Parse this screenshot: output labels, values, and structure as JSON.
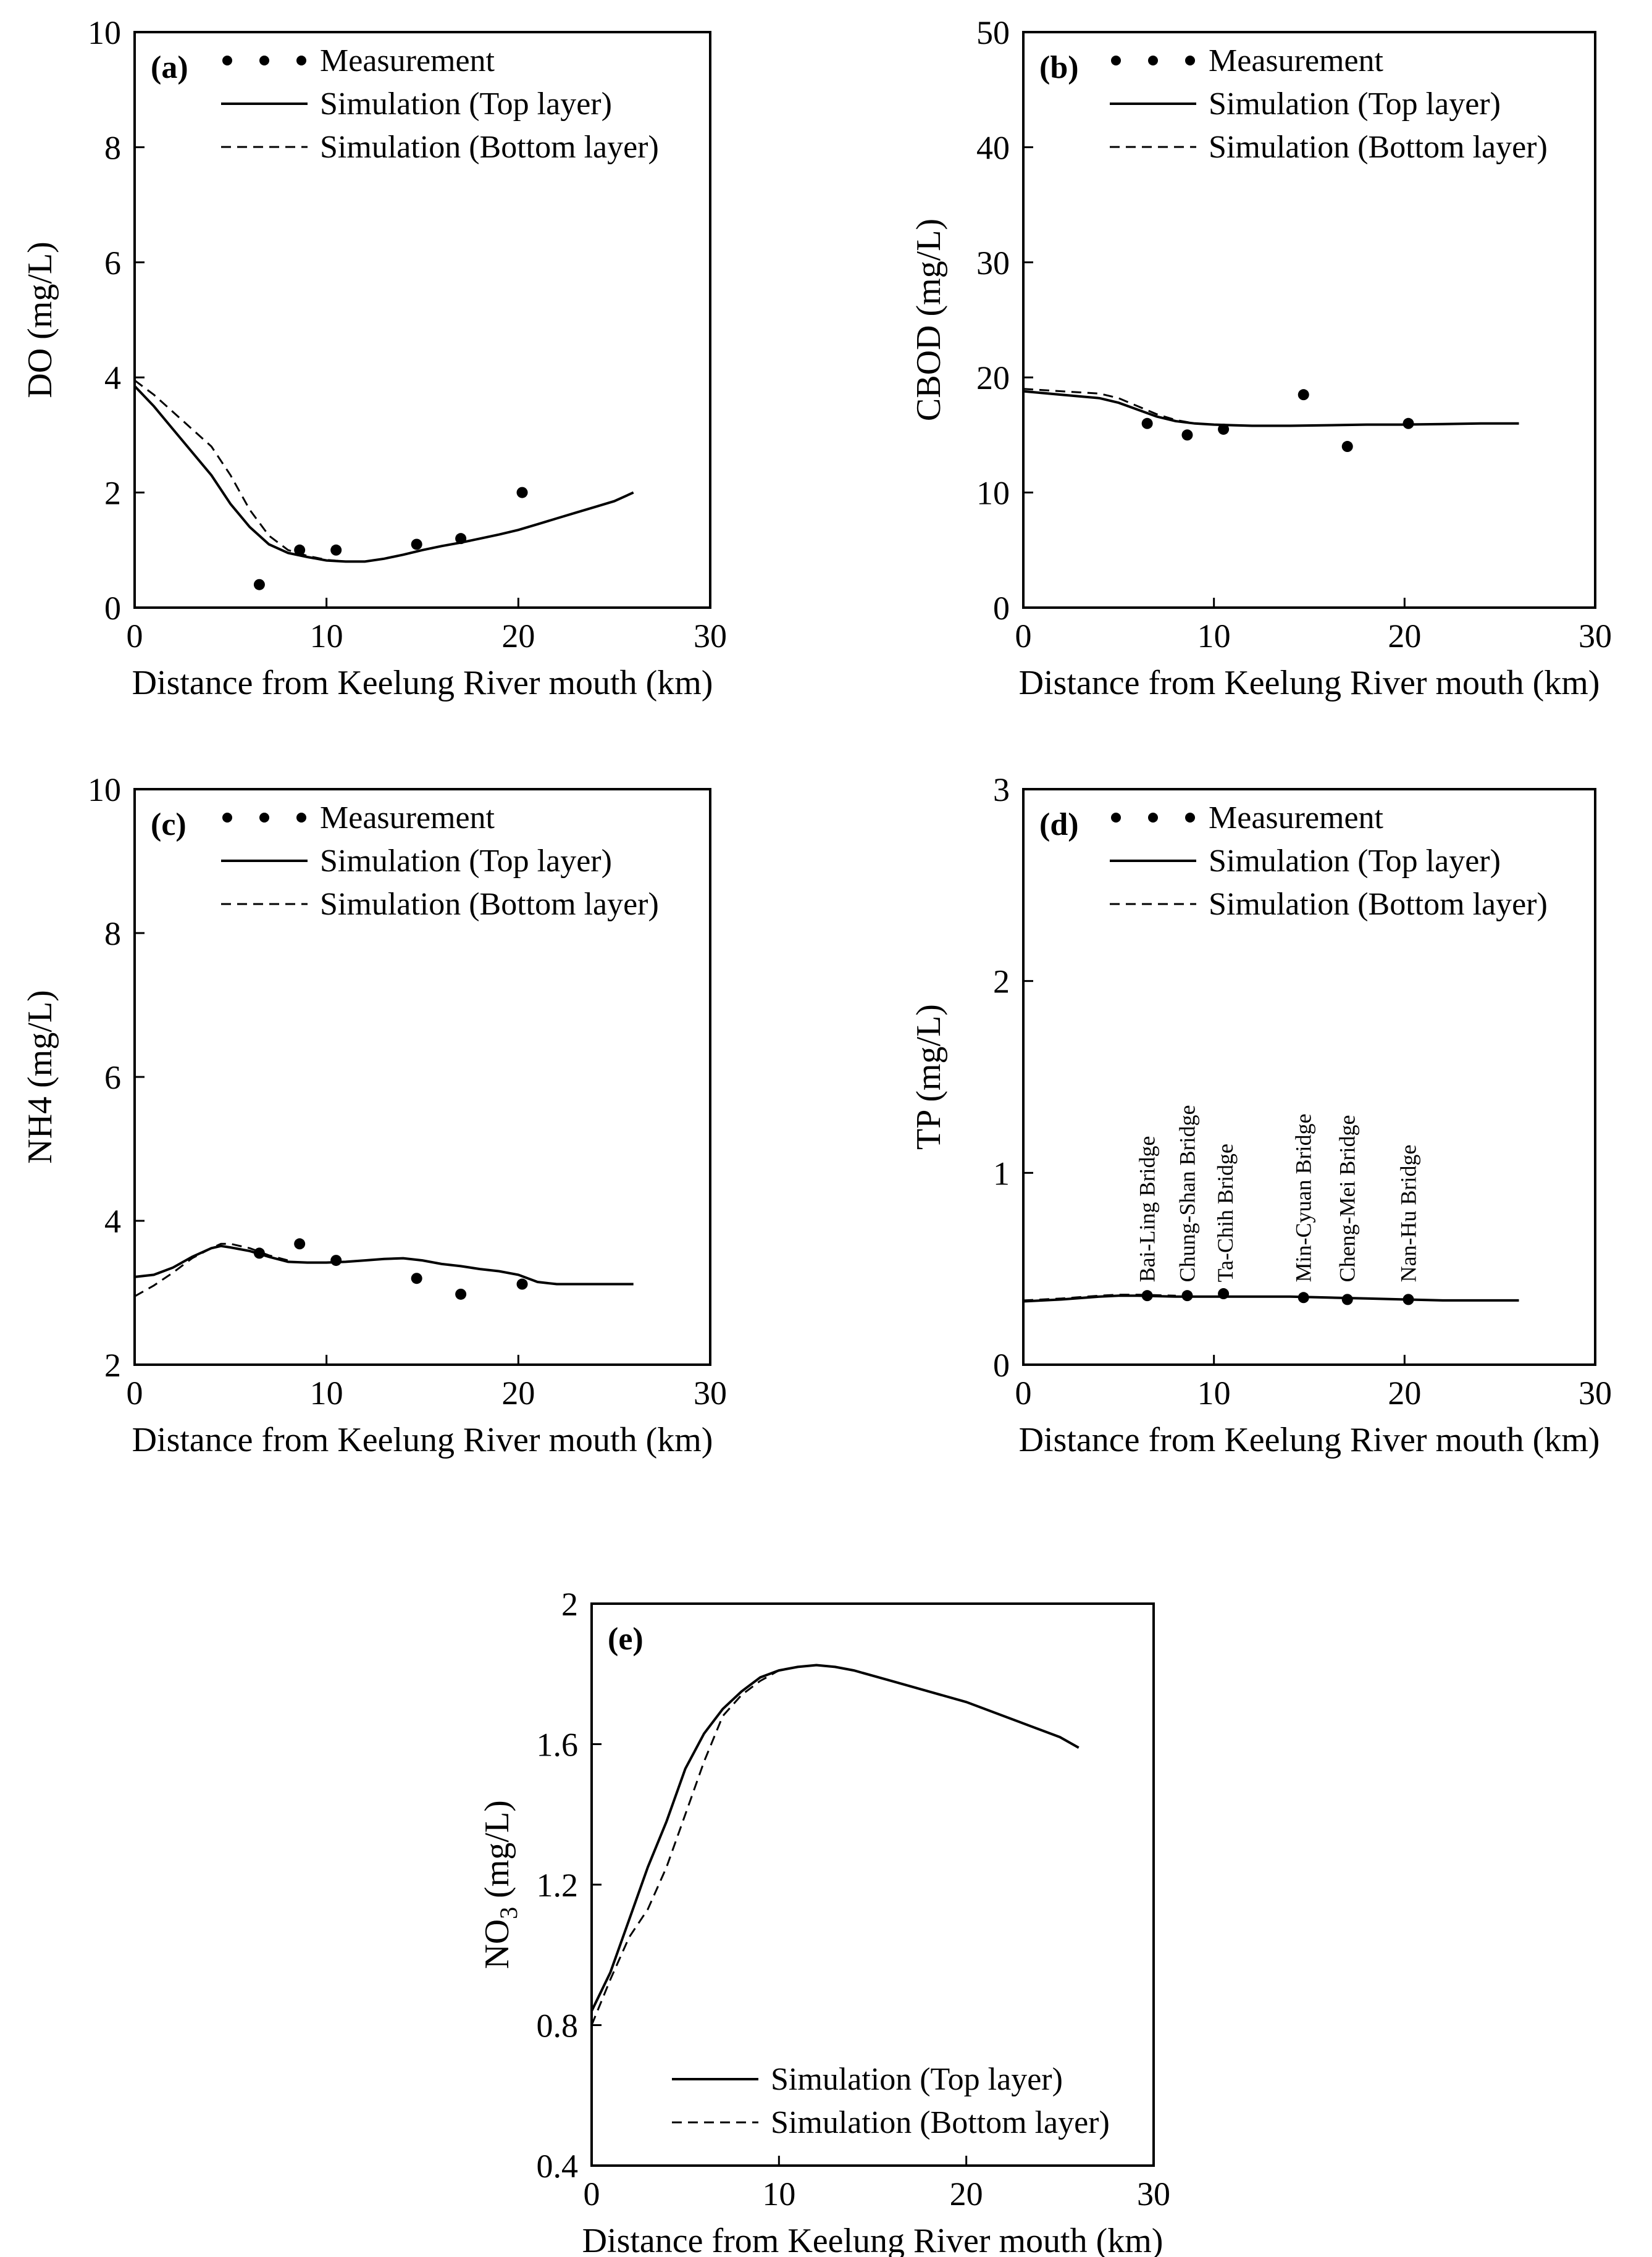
{
  "chart_data": [
    {
      "id": "a",
      "type": "line",
      "panel_tag": "(a)",
      "xlabel": "Distance from Keelung River mouth (km)",
      "ylabel": "DO (mg/L)",
      "ylabel_sub": "",
      "ylabel_rest": "",
      "xlim": [
        0,
        30
      ],
      "ylim": [
        0,
        10
      ],
      "xticks": [
        0,
        10,
        20,
        30
      ],
      "yticks": [
        0,
        2,
        4,
        6,
        8,
        10
      ],
      "legend_position": "top-left",
      "legend": [
        "Measurement",
        "Simulation (Top layer)",
        "Simulation (Bottom layer)"
      ],
      "series": [
        {
          "name": "Measurement",
          "kind": "points",
          "x": [
            6.5,
            8.6,
            10.5,
            14.7,
            17.0,
            20.2
          ],
          "y": [
            0.4,
            1.0,
            1.0,
            1.1,
            1.2,
            2.0
          ]
        },
        {
          "name": "Simulation (Top layer)",
          "kind": "solid",
          "x": [
            0,
            1,
            2,
            3,
            4,
            5,
            6,
            7,
            8,
            9,
            10,
            11,
            12,
            13,
            14,
            15,
            16,
            17,
            18,
            19,
            20,
            21,
            22,
            23,
            24,
            25,
            26
          ],
          "y": [
            3.85,
            3.5,
            3.1,
            2.7,
            2.3,
            1.8,
            1.4,
            1.1,
            0.95,
            0.88,
            0.82,
            0.8,
            0.8,
            0.85,
            0.92,
            1.0,
            1.07,
            1.13,
            1.2,
            1.27,
            1.35,
            1.45,
            1.55,
            1.65,
            1.75,
            1.85,
            2.0
          ]
        },
        {
          "name": "Simulation (Bottom layer)",
          "kind": "dashed",
          "x": [
            0,
            1,
            2,
            3,
            4,
            5,
            6,
            7,
            8,
            9,
            10,
            11,
            12,
            13,
            14,
            15,
            16,
            17,
            18,
            19,
            20
          ],
          "y": [
            3.95,
            3.7,
            3.4,
            3.1,
            2.8,
            2.3,
            1.7,
            1.25,
            1.0,
            0.9,
            0.83,
            0.8,
            0.8,
            0.85,
            0.92,
            1.0,
            1.07,
            1.13,
            1.2,
            1.27,
            1.35
          ]
        }
      ],
      "annotations": []
    },
    {
      "id": "b",
      "type": "line",
      "panel_tag": "(b)",
      "xlabel": "Distance from Keelung River mouth (km)",
      "ylabel": "CBOD (mg/L)",
      "ylabel_sub": "",
      "ylabel_rest": "",
      "xlim": [
        0,
        30
      ],
      "ylim": [
        0,
        50
      ],
      "xticks": [
        0,
        10,
        20,
        30
      ],
      "yticks": [
        0,
        10,
        20,
        30,
        40,
        50
      ],
      "legend_position": "top-left",
      "legend": [
        "Measurement",
        "Simulation (Top layer)",
        "Simulation (Bottom layer)"
      ],
      "series": [
        {
          "name": "Measurement",
          "kind": "points",
          "x": [
            6.5,
            8.6,
            10.5,
            14.7,
            17.0,
            20.2
          ],
          "y": [
            16.0,
            15.0,
            15.5,
            18.5,
            14.0,
            16.0
          ]
        },
        {
          "name": "Simulation (Top layer)",
          "kind": "solid",
          "x": [
            0,
            2,
            4,
            5,
            6,
            7,
            8,
            9,
            10,
            11,
            12,
            14,
            16,
            18,
            20,
            22,
            24,
            26
          ],
          "y": [
            18.8,
            18.5,
            18.2,
            17.8,
            17.2,
            16.6,
            16.2,
            16.0,
            15.9,
            15.85,
            15.8,
            15.8,
            15.85,
            15.9,
            15.9,
            15.95,
            16.0,
            16.0
          ]
        },
        {
          "name": "Simulation (Bottom layer)",
          "kind": "dashed",
          "x": [
            0,
            2,
            4,
            5,
            6,
            7,
            8,
            9,
            10,
            11,
            12
          ],
          "y": [
            19.0,
            18.8,
            18.6,
            18.2,
            17.5,
            16.8,
            16.3,
            16.0,
            15.9,
            15.85,
            15.8
          ]
        }
      ],
      "annotations": []
    },
    {
      "id": "c",
      "type": "line",
      "panel_tag": "(c)",
      "xlabel": "Distance from Keelung River mouth (km)",
      "ylabel": "NH4 (mg/L)",
      "ylabel_sub": "",
      "ylabel_rest": "",
      "xlim": [
        0,
        30
      ],
      "ylim": [
        2,
        10
      ],
      "xticks": [
        0,
        10,
        20,
        30
      ],
      "yticks": [
        2,
        4,
        6,
        8,
        10
      ],
      "legend_position": "top-left",
      "legend": [
        "Measurement",
        "Simulation (Top layer)",
        "Simulation (Bottom layer)"
      ],
      "series": [
        {
          "name": "Measurement",
          "kind": "points",
          "x": [
            6.5,
            8.6,
            10.5,
            14.7,
            17.0,
            20.2
          ],
          "y": [
            3.55,
            3.68,
            3.45,
            3.2,
            2.98,
            3.12
          ]
        },
        {
          "name": "Simulation (Top layer)",
          "kind": "solid",
          "x": [
            0,
            1,
            2,
            3,
            4,
            4.5,
            5,
            6,
            7,
            8,
            9,
            10,
            11,
            12,
            13,
            14,
            15,
            16,
            17,
            18,
            19,
            20,
            21,
            22,
            24,
            26
          ],
          "y": [
            3.22,
            3.25,
            3.35,
            3.5,
            3.62,
            3.65,
            3.63,
            3.58,
            3.5,
            3.43,
            3.42,
            3.42,
            3.43,
            3.45,
            3.47,
            3.48,
            3.45,
            3.4,
            3.37,
            3.33,
            3.3,
            3.25,
            3.15,
            3.12,
            3.12,
            3.12
          ]
        },
        {
          "name": "Simulation (Bottom layer)",
          "kind": "dashed",
          "x": [
            0,
            1,
            2,
            3,
            4,
            4.5,
            5,
            6,
            7,
            8
          ],
          "y": [
            2.95,
            3.1,
            3.28,
            3.48,
            3.62,
            3.68,
            3.68,
            3.62,
            3.52,
            3.45
          ]
        }
      ],
      "annotations": []
    },
    {
      "id": "d",
      "type": "line",
      "panel_tag": "(d)",
      "xlabel": "Distance from Keelung River mouth (km)",
      "ylabel": "TP (mg/L)",
      "ylabel_sub": "",
      "ylabel_rest": "",
      "xlim": [
        0,
        30
      ],
      "ylim": [
        0,
        3
      ],
      "xticks": [
        0,
        10,
        20,
        30
      ],
      "yticks": [
        0,
        1,
        2,
        3
      ],
      "legend_position": "top-left",
      "legend": [
        "Measurement",
        "Simulation (Top layer)",
        "Simulation (Bottom layer)"
      ],
      "series": [
        {
          "name": "Measurement",
          "kind": "points",
          "x": [
            6.5,
            8.6,
            10.5,
            14.7,
            17.0,
            20.2
          ],
          "y": [
            0.36,
            0.36,
            0.37,
            0.35,
            0.34,
            0.34
          ]
        },
        {
          "name": "Simulation (Top layer)",
          "kind": "solid",
          "x": [
            0,
            2,
            4,
            5,
            6,
            8,
            10,
            12,
            14,
            16,
            18,
            20,
            22,
            24,
            26
          ],
          "y": [
            0.33,
            0.34,
            0.355,
            0.36,
            0.36,
            0.355,
            0.355,
            0.355,
            0.355,
            0.35,
            0.345,
            0.34,
            0.335,
            0.335,
            0.335
          ]
        },
        {
          "name": "Simulation (Bottom layer)",
          "kind": "dashed",
          "x": [
            0,
            2,
            4,
            5,
            6,
            8
          ],
          "y": [
            0.335,
            0.345,
            0.36,
            0.365,
            0.365,
            0.36
          ]
        }
      ],
      "annotations": [
        {
          "text": "Bai-Ling Bridge",
          "x": 6.5,
          "y": 0.43
        },
        {
          "text": "Chung-Shan Bridge",
          "x": 8.6,
          "y": 0.43
        },
        {
          "text": "Ta-Chih Bridge",
          "x": 10.6,
          "y": 0.43
        },
        {
          "text": "Min-Cyuan Bridge",
          "x": 14.7,
          "y": 0.43
        },
        {
          "text": "Cheng-Mei Bridge",
          "x": 17.0,
          "y": 0.43
        },
        {
          "text": "Nan-Hu Bridge",
          "x": 20.2,
          "y": 0.43
        }
      ]
    },
    {
      "id": "e",
      "type": "line",
      "panel_tag": "(e)",
      "xlabel": "Distance from Keelung River mouth (km)",
      "ylabel": "NO",
      "ylabel_sub": "3",
      "ylabel_rest": " (mg/L)",
      "xlim": [
        0,
        30
      ],
      "ylim": [
        0.4,
        2.0
      ],
      "xticks": [
        0,
        10,
        20,
        30
      ],
      "yticks": [
        0.4,
        0.8,
        1.2,
        1.6,
        2.0
      ],
      "ytick_labels": [
        "0.4",
        "0.8",
        "1.2",
        "1.6",
        "2"
      ],
      "legend_position": "bottom-right",
      "legend": [
        "Simulation (Top layer)",
        "Simulation (Bottom layer)"
      ],
      "series": [
        {
          "name": "Simulation (Top layer)",
          "kind": "solid",
          "x": [
            0,
            1,
            2,
            3,
            4,
            5,
            6,
            7,
            8,
            9,
            10,
            11,
            12,
            13,
            14,
            16,
            18,
            20,
            22,
            24,
            25,
            26
          ],
          "y": [
            0.84,
            0.95,
            1.1,
            1.25,
            1.38,
            1.53,
            1.63,
            1.7,
            1.75,
            1.79,
            1.81,
            1.82,
            1.825,
            1.82,
            1.81,
            1.78,
            1.75,
            1.72,
            1.68,
            1.64,
            1.62,
            1.59
          ]
        },
        {
          "name": "Simulation (Bottom layer)",
          "kind": "dashed",
          "x": [
            0,
            1,
            2,
            3,
            4,
            5,
            6,
            7,
            8,
            9,
            10,
            11,
            12
          ],
          "y": [
            0.8,
            0.93,
            1.05,
            1.13,
            1.25,
            1.4,
            1.55,
            1.68,
            1.74,
            1.78,
            1.81,
            1.82,
            1.825
          ]
        }
      ],
      "annotations": []
    }
  ]
}
